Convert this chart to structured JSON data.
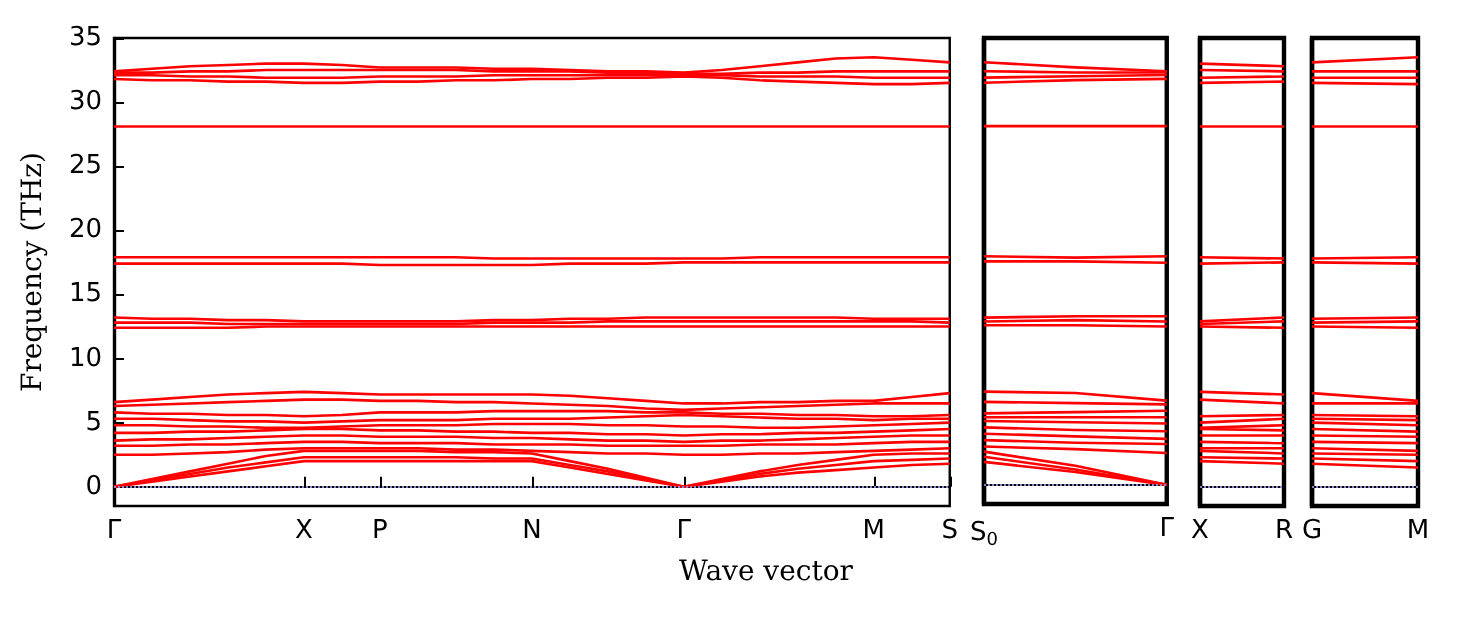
{
  "chart_data": [
    {
      "type": "line",
      "ylabel": "Frequency (THz)",
      "xlabel": "Wave vector",
      "categories": [
        "Γ",
        null,
        null,
        null,
        null,
        "X",
        null,
        "P",
        null,
        null,
        null,
        "N",
        null,
        null,
        null,
        "Γ",
        null,
        null,
        null,
        null,
        "M",
        null,
        "S"
      ],
      "ylim": [
        -1.5,
        35
      ],
      "yticks": [
        0,
        5,
        10,
        15,
        20,
        25,
        30,
        35
      ],
      "ref_lines": [
        {
          "axis": "y",
          "value": 0,
          "color": "#8888cc",
          "line_style": "dotted"
        }
      ],
      "series": [
        {
          "color": "#ff0000",
          "values": [
            0,
            0.4,
            0.8,
            1.2,
            1.6,
            2.0,
            2.0,
            2.0,
            2.0,
            2.0,
            2.0,
            2.0,
            1.5,
            1.0,
            0.5,
            0,
            0.4,
            0.8,
            1.1,
            1.3,
            1.5,
            1.7,
            1.8
          ]
        },
        {
          "color": "#ff0000",
          "values": [
            0,
            0.5,
            1.0,
            1.5,
            1.9,
            2.3,
            2.3,
            2.3,
            2.3,
            2.3,
            2.2,
            2.2,
            1.7,
            1.2,
            0.6,
            0,
            0.5,
            1.0,
            1.4,
            1.7,
            2.0,
            2.1,
            2.2
          ]
        },
        {
          "color": "#ff0000",
          "values": [
            0,
            0.6,
            1.2,
            1.8,
            2.4,
            2.8,
            2.8,
            2.8,
            2.8,
            2.7,
            2.7,
            2.6,
            2.0,
            1.4,
            0.7,
            0,
            0.6,
            1.2,
            1.7,
            2.1,
            2.5,
            2.6,
            2.6
          ]
        },
        {
          "color": "#ff0000",
          "values": [
            2.5,
            2.5,
            2.6,
            2.7,
            2.9,
            3.0,
            3.0,
            3.0,
            3.0,
            2.9,
            2.9,
            2.8,
            2.7,
            2.6,
            2.6,
            2.5,
            2.5,
            2.6,
            2.6,
            2.7,
            2.8,
            2.9,
            3.0
          ]
        },
        {
          "color": "#ff0000",
          "values": [
            3.2,
            3.2,
            3.3,
            3.3,
            3.4,
            3.5,
            3.5,
            3.4,
            3.4,
            3.4,
            3.3,
            3.3,
            3.3,
            3.2,
            3.2,
            3.2,
            3.2,
            3.3,
            3.3,
            3.3,
            3.4,
            3.5,
            3.5
          ]
        },
        {
          "color": "#ff0000",
          "values": [
            3.6,
            3.7,
            3.7,
            3.8,
            3.9,
            4.0,
            4.0,
            3.9,
            3.9,
            3.9,
            3.8,
            3.8,
            3.7,
            3.6,
            3.6,
            3.5,
            3.6,
            3.6,
            3.7,
            3.8,
            3.9,
            4.0,
            4.0
          ]
        },
        {
          "color": "#ff0000",
          "values": [
            4.2,
            4.2,
            4.3,
            4.3,
            4.4,
            4.5,
            4.5,
            4.4,
            4.4,
            4.3,
            4.3,
            4.2,
            4.2,
            4.1,
            4.1,
            4.0,
            4.1,
            4.1,
            4.2,
            4.2,
            4.3,
            4.4,
            4.5
          ]
        },
        {
          "color": "#ff0000",
          "values": [
            4.8,
            4.8,
            4.7,
            4.7,
            4.6,
            4.6,
            4.7,
            4.8,
            4.8,
            4.8,
            4.9,
            4.9,
            4.9,
            4.8,
            4.8,
            4.7,
            4.7,
            4.6,
            4.6,
            4.7,
            4.8,
            4.9,
            5.0
          ]
        },
        {
          "color": "#ff0000",
          "values": [
            5.3,
            5.3,
            5.2,
            5.1,
            5.1,
            5.0,
            5.1,
            5.2,
            5.2,
            5.2,
            5.3,
            5.3,
            5.3,
            5.4,
            5.5,
            5.6,
            5.5,
            5.4,
            5.3,
            5.3,
            5.2,
            5.3,
            5.3
          ]
        },
        {
          "color": "#ff0000",
          "values": [
            5.8,
            5.7,
            5.7,
            5.6,
            5.6,
            5.5,
            5.6,
            5.8,
            5.8,
            5.8,
            5.9,
            5.9,
            5.9,
            5.9,
            5.8,
            5.8,
            5.7,
            5.7,
            5.6,
            5.6,
            5.5,
            5.5,
            5.6
          ]
        },
        {
          "color": "#ff0000",
          "values": [
            6.3,
            6.4,
            6.5,
            6.6,
            6.7,
            6.8,
            6.8,
            6.7,
            6.7,
            6.6,
            6.6,
            6.5,
            6.4,
            6.3,
            6.1,
            6.0,
            6.1,
            6.2,
            6.3,
            6.4,
            6.5,
            6.5,
            6.5
          ]
        },
        {
          "color": "#ff0000",
          "values": [
            6.6,
            6.8,
            7.0,
            7.2,
            7.3,
            7.4,
            7.3,
            7.2,
            7.2,
            7.2,
            7.2,
            7.2,
            7.1,
            6.9,
            6.7,
            6.5,
            6.5,
            6.6,
            6.6,
            6.7,
            6.7,
            7.0,
            7.3
          ]
        },
        {
          "color": "#ff0000",
          "values": [
            12.4,
            12.4,
            12.4,
            12.4,
            12.5,
            12.5,
            12.5,
            12.5,
            12.5,
            12.5,
            12.5,
            12.5,
            12.5,
            12.5,
            12.5,
            12.5,
            12.5,
            12.5,
            12.5,
            12.5,
            12.5,
            12.5,
            12.5
          ]
        },
        {
          "color": "#ff0000",
          "values": [
            12.8,
            12.8,
            12.8,
            12.7,
            12.7,
            12.7,
            12.7,
            12.7,
            12.7,
            12.7,
            12.8,
            12.8,
            12.8,
            12.9,
            12.9,
            12.9,
            12.9,
            12.9,
            12.9,
            12.9,
            12.9,
            12.9,
            12.8
          ]
        },
        {
          "color": "#ff0000",
          "values": [
            13.2,
            13.1,
            13.1,
            13.0,
            13.0,
            12.9,
            12.9,
            12.9,
            12.9,
            12.9,
            13.0,
            13.0,
            13.1,
            13.1,
            13.2,
            13.2,
            13.2,
            13.2,
            13.2,
            13.2,
            13.1,
            13.1,
            13.1
          ]
        },
        {
          "color": "#ff0000",
          "values": [
            17.4,
            17.4,
            17.4,
            17.4,
            17.4,
            17.4,
            17.4,
            17.3,
            17.3,
            17.3,
            17.3,
            17.3,
            17.4,
            17.4,
            17.4,
            17.5,
            17.5,
            17.5,
            17.5,
            17.5,
            17.5,
            17.5,
            17.5
          ]
        },
        {
          "color": "#ff0000",
          "values": [
            17.9,
            17.9,
            17.9,
            17.9,
            17.9,
            17.9,
            17.9,
            17.9,
            17.9,
            17.9,
            17.8,
            17.8,
            17.8,
            17.8,
            17.8,
            17.8,
            17.8,
            17.9,
            17.9,
            17.9,
            17.9,
            17.9,
            17.9
          ]
        },
        {
          "color": "#ff0000",
          "values": [
            28.1,
            28.1,
            28.1,
            28.1,
            28.1,
            28.1,
            28.1,
            28.1,
            28.1,
            28.1,
            28.1,
            28.1,
            28.1,
            28.1,
            28.1,
            28.1,
            28.1,
            28.1,
            28.1,
            28.1,
            28.1,
            28.1,
            28.1
          ]
        },
        {
          "color": "#ff0000",
          "values": [
            31.8,
            31.7,
            31.7,
            31.6,
            31.6,
            31.5,
            31.5,
            31.6,
            31.6,
            31.7,
            31.7,
            31.8,
            31.8,
            31.9,
            31.9,
            32.0,
            31.9,
            31.7,
            31.6,
            31.5,
            31.4,
            31.4,
            31.5
          ]
        },
        {
          "color": "#ff0000",
          "values": [
            32.1,
            32.1,
            32.0,
            32.0,
            31.9,
            31.9,
            31.9,
            32.0,
            32.0,
            32.0,
            32.1,
            32.1,
            32.1,
            32.1,
            32.1,
            32.1,
            32.1,
            32.0,
            32.0,
            32.0,
            31.9,
            31.9,
            31.9
          ]
        },
        {
          "color": "#ff0000",
          "values": [
            32.3,
            32.3,
            32.4,
            32.4,
            32.5,
            32.5,
            32.5,
            32.5,
            32.5,
            32.5,
            32.4,
            32.4,
            32.4,
            32.3,
            32.3,
            32.2,
            32.2,
            32.3,
            32.3,
            32.4,
            32.4,
            32.4,
            32.4
          ]
        },
        {
          "color": "#ff0000",
          "values": [
            32.4,
            32.6,
            32.8,
            32.9,
            33.0,
            33.0,
            32.9,
            32.7,
            32.7,
            32.7,
            32.6,
            32.6,
            32.5,
            32.4,
            32.4,
            32.3,
            32.5,
            32.8,
            33.1,
            33.4,
            33.5,
            33.3,
            33.1
          ]
        }
      ]
    },
    {
      "type": "line",
      "tick_labels": "x",
      "categories": [
        "S$_{0}$",
        null,
        "Γ"
      ],
      "ylim": [
        -1.5,
        35
      ],
      "yticks": [
        0,
        5,
        10,
        15,
        20,
        25,
        30,
        35
      ],
      "ref_lines": [
        {
          "axis": "y",
          "value": 0,
          "color": "#8888cc",
          "line_style": "dotted"
        }
      ],
      "series": [
        {
          "color": "#ff0000",
          "values": [
            1.8,
            1.0,
            0
          ]
        },
        {
          "color": "#ff0000",
          "values": [
            2.2,
            1.2,
            0
          ]
        },
        {
          "color": "#ff0000",
          "values": [
            2.6,
            1.5,
            0
          ]
        },
        {
          "color": "#ff0000",
          "values": [
            3.0,
            2.8,
            2.5
          ]
        },
        {
          "color": "#ff0000",
          "values": [
            3.5,
            3.3,
            3.2
          ]
        },
        {
          "color": "#ff0000",
          "values": [
            4.0,
            3.8,
            3.6
          ]
        },
        {
          "color": "#ff0000",
          "values": [
            4.5,
            4.3,
            4.2
          ]
        },
        {
          "color": "#ff0000",
          "values": [
            5.0,
            4.9,
            4.8
          ]
        },
        {
          "color": "#ff0000",
          "values": [
            5.3,
            5.3,
            5.3
          ]
        },
        {
          "color": "#ff0000",
          "values": [
            5.6,
            5.7,
            5.8
          ]
        },
        {
          "color": "#ff0000",
          "values": [
            6.5,
            6.4,
            6.3
          ]
        },
        {
          "color": "#ff0000",
          "values": [
            7.3,
            7.2,
            6.6
          ]
        },
        {
          "color": "#ff0000",
          "values": [
            12.5,
            12.5,
            12.4
          ]
        },
        {
          "color": "#ff0000",
          "values": [
            12.8,
            12.9,
            12.8
          ]
        },
        {
          "color": "#ff0000",
          "values": [
            13.1,
            13.2,
            13.2
          ]
        },
        {
          "color": "#ff0000",
          "values": [
            17.5,
            17.5,
            17.4
          ]
        },
        {
          "color": "#ff0000",
          "values": [
            17.9,
            17.8,
            17.9
          ]
        },
        {
          "color": "#ff0000",
          "values": [
            28.1,
            28.1,
            28.1
          ]
        },
        {
          "color": "#ff0000",
          "values": [
            31.5,
            31.7,
            31.8
          ]
        },
        {
          "color": "#ff0000",
          "values": [
            31.9,
            32.0,
            32.1
          ]
        },
        {
          "color": "#ff0000",
          "values": [
            32.4,
            32.3,
            32.3
          ]
        },
        {
          "color": "#ff0000",
          "values": [
            33.1,
            32.7,
            32.4
          ]
        }
      ]
    },
    {
      "type": "line",
      "tick_labels": "x",
      "categories": [
        "X",
        "R"
      ],
      "ylim": [
        -1.5,
        35
      ],
      "yticks": [
        0,
        5,
        10,
        15,
        20,
        25,
        30,
        35
      ],
      "ref_lines": [
        {
          "axis": "y",
          "value": 0,
          "color": "#8888cc",
          "line_style": "dotted"
        }
      ],
      "series": [
        {
          "color": "#ff0000",
          "values": [
            2.0,
            1.8
          ]
        },
        {
          "color": "#ff0000",
          "values": [
            2.3,
            2.2
          ]
        },
        {
          "color": "#ff0000",
          "values": [
            2.8,
            2.6
          ]
        },
        {
          "color": "#ff0000",
          "values": [
            3.0,
            3.0
          ]
        },
        {
          "color": "#ff0000",
          "values": [
            3.5,
            3.4
          ]
        },
        {
          "color": "#ff0000",
          "values": [
            4.0,
            4.0
          ]
        },
        {
          "color": "#ff0000",
          "values": [
            4.5,
            4.4
          ]
        },
        {
          "color": "#ff0000",
          "values": [
            4.6,
            4.8
          ]
        },
        {
          "color": "#ff0000",
          "values": [
            5.0,
            5.3
          ]
        },
        {
          "color": "#ff0000",
          "values": [
            5.5,
            5.6
          ]
        },
        {
          "color": "#ff0000",
          "values": [
            6.8,
            6.5
          ]
        },
        {
          "color": "#ff0000",
          "values": [
            7.4,
            7.2
          ]
        },
        {
          "color": "#ff0000",
          "values": [
            12.5,
            12.4
          ]
        },
        {
          "color": "#ff0000",
          "values": [
            12.7,
            12.9
          ]
        },
        {
          "color": "#ff0000",
          "values": [
            12.9,
            13.2
          ]
        },
        {
          "color": "#ff0000",
          "values": [
            17.4,
            17.5
          ]
        },
        {
          "color": "#ff0000",
          "values": [
            17.9,
            17.8
          ]
        },
        {
          "color": "#ff0000",
          "values": [
            28.1,
            28.1
          ]
        },
        {
          "color": "#ff0000",
          "values": [
            31.5,
            31.6
          ]
        },
        {
          "color": "#ff0000",
          "values": [
            31.9,
            32.0
          ]
        },
        {
          "color": "#ff0000",
          "values": [
            32.5,
            32.4
          ]
        },
        {
          "color": "#ff0000",
          "values": [
            33.0,
            32.8
          ]
        }
      ]
    },
    {
      "type": "line",
      "tick_labels": "x",
      "categories": [
        "G",
        "M"
      ],
      "ylim": [
        -1.5,
        35
      ],
      "yticks": [
        0,
        5,
        10,
        15,
        20,
        25,
        30,
        35
      ],
      "ref_lines": [
        {
          "axis": "y",
          "value": 0,
          "color": "#8888cc",
          "line_style": "dotted"
        }
      ],
      "series": [
        {
          "color": "#ff0000",
          "values": [
            1.8,
            1.5
          ]
        },
        {
          "color": "#ff0000",
          "values": [
            2.2,
            2.0
          ]
        },
        {
          "color": "#ff0000",
          "values": [
            2.6,
            2.5
          ]
        },
        {
          "color": "#ff0000",
          "values": [
            3.0,
            2.8
          ]
        },
        {
          "color": "#ff0000",
          "values": [
            3.5,
            3.4
          ]
        },
        {
          "color": "#ff0000",
          "values": [
            4.0,
            3.9
          ]
        },
        {
          "color": "#ff0000",
          "values": [
            4.5,
            4.3
          ]
        },
        {
          "color": "#ff0000",
          "values": [
            5.0,
            4.8
          ]
        },
        {
          "color": "#ff0000",
          "values": [
            5.3,
            5.2
          ]
        },
        {
          "color": "#ff0000",
          "values": [
            5.6,
            5.5
          ]
        },
        {
          "color": "#ff0000",
          "values": [
            6.5,
            6.5
          ]
        },
        {
          "color": "#ff0000",
          "values": [
            7.3,
            6.7
          ]
        },
        {
          "color": "#ff0000",
          "values": [
            12.5,
            12.4
          ]
        },
        {
          "color": "#ff0000",
          "values": [
            12.8,
            12.9
          ]
        },
        {
          "color": "#ff0000",
          "values": [
            13.1,
            13.2
          ]
        },
        {
          "color": "#ff0000",
          "values": [
            17.5,
            17.4
          ]
        },
        {
          "color": "#ff0000",
          "values": [
            17.8,
            17.9
          ]
        },
        {
          "color": "#ff0000",
          "values": [
            28.1,
            28.1
          ]
        },
        {
          "color": "#ff0000",
          "values": [
            31.5,
            31.4
          ]
        },
        {
          "color": "#ff0000",
          "values": [
            31.9,
            31.9
          ]
        },
        {
          "color": "#ff0000",
          "values": [
            32.4,
            32.4
          ]
        },
        {
          "color": "#ff0000",
          "values": [
            33.1,
            33.5
          ]
        }
      ]
    }
  ]
}
